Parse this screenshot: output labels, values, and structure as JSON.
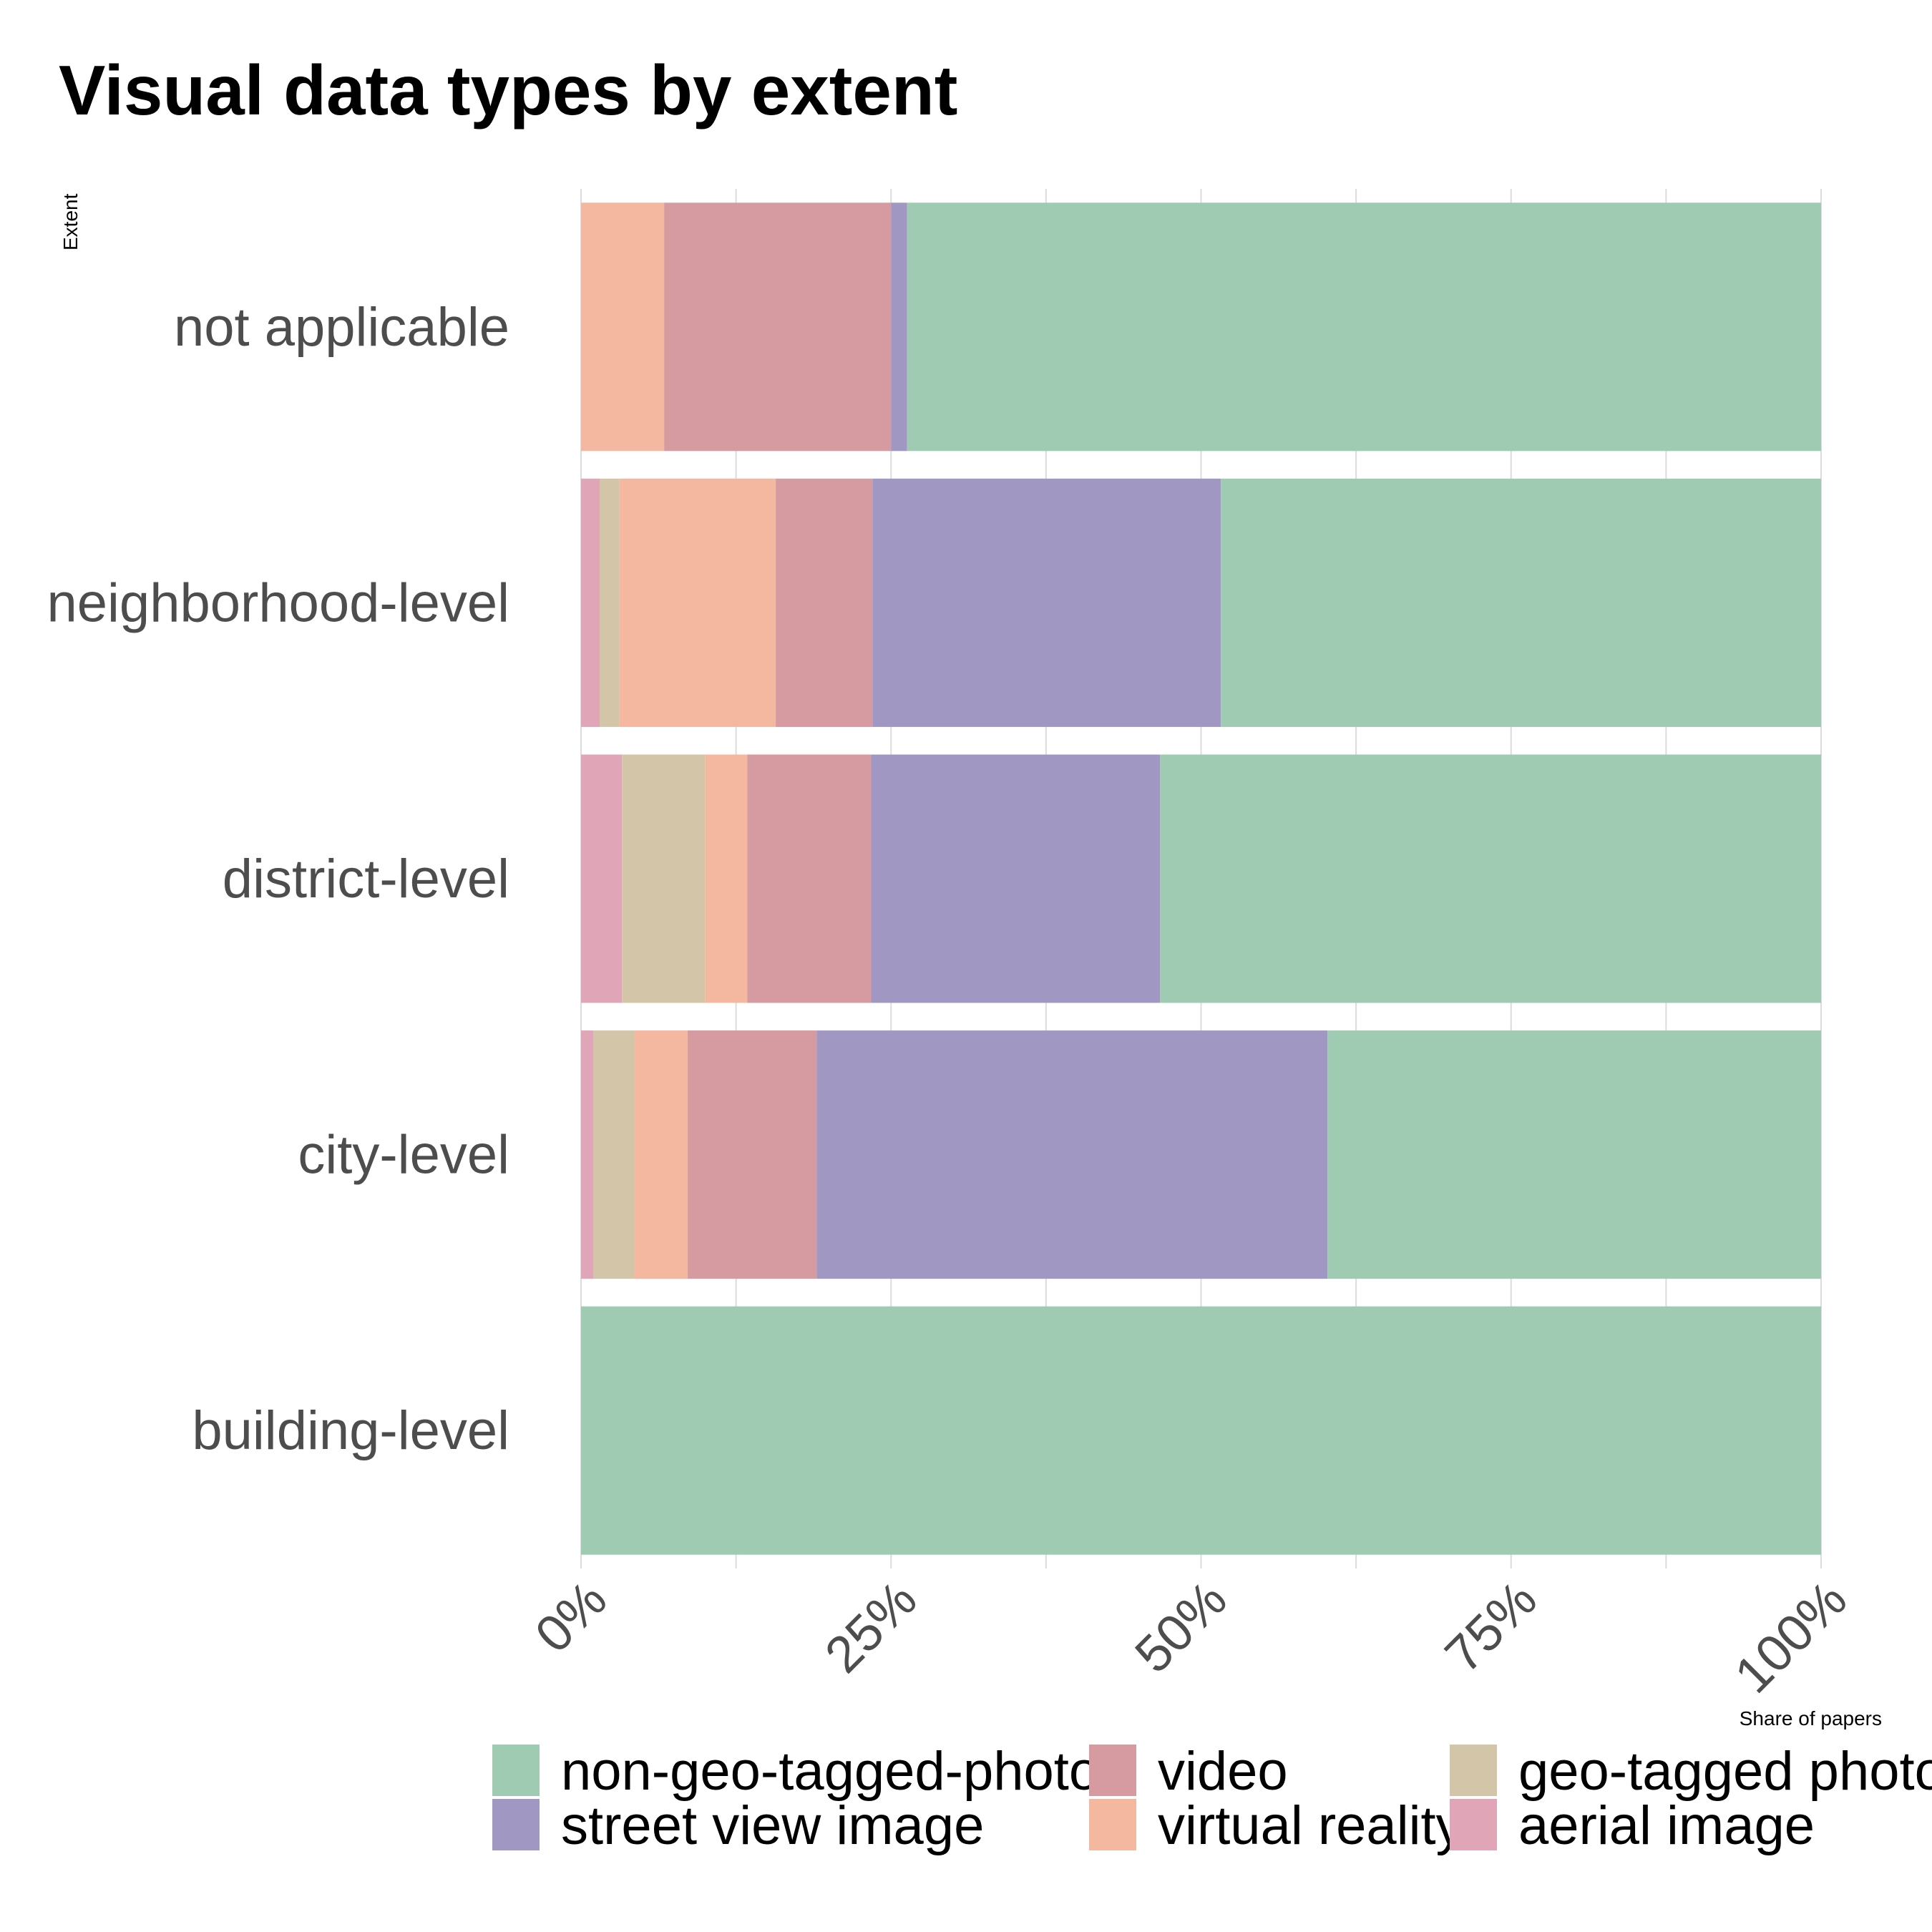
{
  "chart_data": {
    "type": "bar",
    "orientation": "horizontal",
    "stacked": "percent",
    "title": "Visual data types by extent",
    "xlabel": "Share of papers",
    "ylabel": "Extent",
    "xlim": [
      0,
      100
    ],
    "x_tick_labels": [
      "0%",
      "25%",
      "50%",
      "75%",
      "100%"
    ],
    "grid": true,
    "legend_position": "bottom",
    "categories": [
      "not applicable",
      "neighborhood-level",
      "district-level",
      "city-level",
      "building-level"
    ],
    "series": [
      {
        "name": "aerial image",
        "color": "#e0a6b8",
        "values": [
          0,
          1.5,
          3.3,
          1.0,
          0
        ]
      },
      {
        "name": "geo-tagged photos",
        "color": "#d3c5a7",
        "values": [
          0,
          1.6,
          6.7,
          3.3,
          0
        ]
      },
      {
        "name": "virtual reality",
        "color": "#f4b8a0",
        "values": [
          6.7,
          12.6,
          3.4,
          4.3,
          0
        ]
      },
      {
        "name": "video",
        "color": "#d69aa1",
        "values": [
          18.3,
          7.8,
          10.0,
          10.4,
          0
        ]
      },
      {
        "name": "street view image",
        "color": "#a098c2",
        "values": [
          1.3,
          28.1,
          23.3,
          41.2,
          0
        ]
      },
      {
        "name": "non-geo-tagged-photos",
        "color": "#a0cbb3",
        "values": [
          73.7,
          48.4,
          53.3,
          39.8,
          100
        ]
      }
    ],
    "legend_order": [
      "non-geo-tagged-photos",
      "video",
      "geo-tagged photos",
      "street view image",
      "virtual reality",
      "aerial image"
    ]
  }
}
